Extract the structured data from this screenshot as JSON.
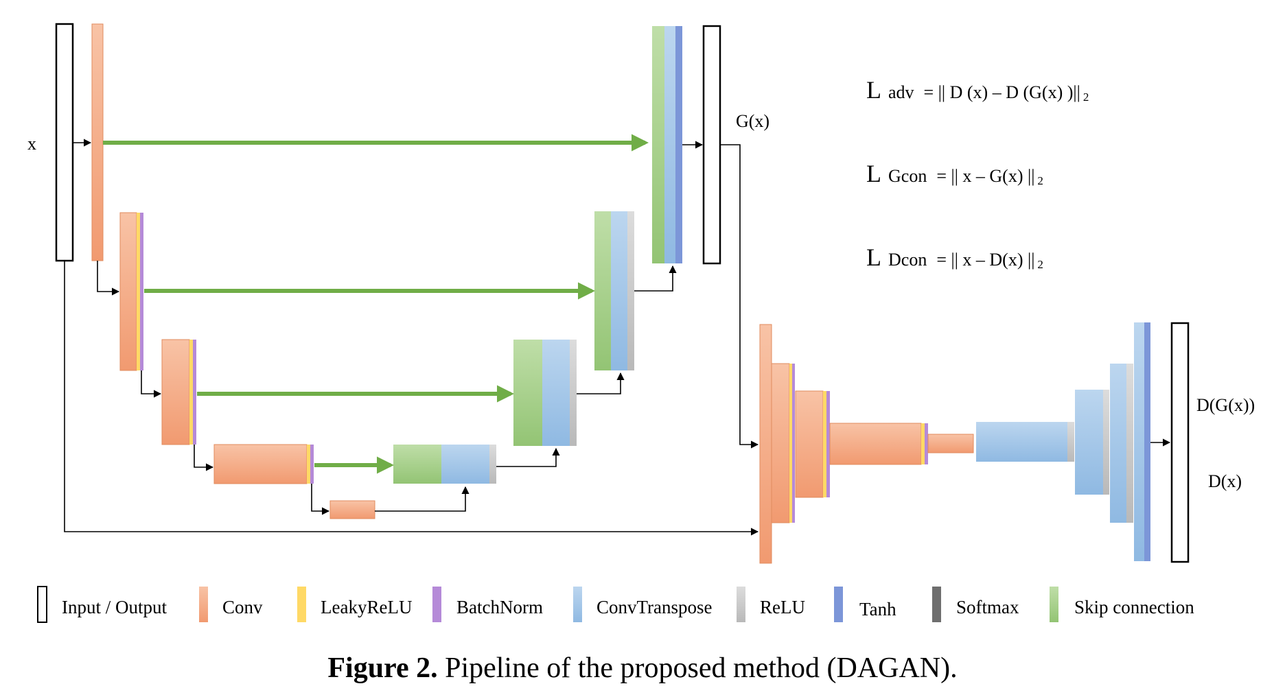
{
  "figure": {
    "input_label": "x",
    "generator_output_label": "G(x)",
    "discriminator_outputs": [
      "D(G(x))",
      "D(x)"
    ]
  },
  "losses": [
    {
      "L": "L",
      "name": "adv",
      "formula": "= || D (x) – D (G(x) )||",
      "sub": "2"
    },
    {
      "L": "L",
      "name": "Gcon",
      "formula": "= || x – G(x) ||",
      "sub": "2"
    },
    {
      "L": "L",
      "name": "Dcon",
      "formula": "= || x – D(x) ||",
      "sub": "2"
    }
  ],
  "legend": [
    {
      "label": "Input / Output",
      "color": "#ffffff"
    },
    {
      "label": "Conv",
      "color": "#f4a882"
    },
    {
      "label": "LeakyReLU",
      "color": "#ffd966"
    },
    {
      "label": "BatchNorm",
      "color": "#b58ad8"
    },
    {
      "label": "ConvTranspose",
      "color": "#9dc3e6"
    },
    {
      "label": "ReLU",
      "color": "#c9c9c9"
    },
    {
      "label": "Tanh",
      "color": "#7c96d8"
    },
    {
      "label": "Softmax",
      "color": "#6e6e6e"
    },
    {
      "label": "Skip connection",
      "color": "#a9d18e"
    }
  ],
  "caption": {
    "bold": "Figure 2.",
    "text": "Pipeline of the proposed method (DAGAN)."
  }
}
